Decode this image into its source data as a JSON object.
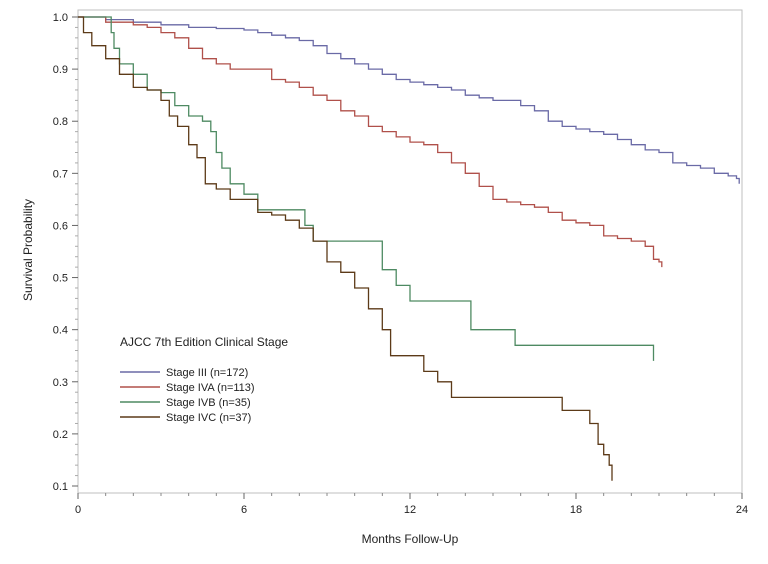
{
  "chart_data": {
    "type": "line",
    "subtype": "kaplan-meier step curves",
    "title": "",
    "xlabel": "Months Follow-Up",
    "ylabel": "Survival Probability",
    "xlim": [
      0,
      24
    ],
    "ylim": [
      0.1,
      1.0
    ],
    "x_ticks": [
      0,
      6,
      12,
      18,
      24
    ],
    "x_tick_labels": [
      "0",
      "6",
      "12",
      "18",
      "24"
    ],
    "y_ticks": [
      0.1,
      0.2,
      0.3,
      0.4,
      0.5,
      0.6,
      0.7,
      0.8,
      0.9,
      1.0
    ],
    "y_tick_labels": [
      "0.1",
      "0.2",
      "0.3",
      "0.4",
      "0.5",
      "0.6",
      "0.7",
      "0.8",
      "0.9",
      "1.0"
    ],
    "grid": false,
    "legend": {
      "title": "AJCC 7th Edition Clinical Stage",
      "placement": "lower-left inside plot"
    },
    "series": [
      {
        "name": "Stage III (n=172)",
        "color": "#6a6aa6",
        "points": [
          [
            0,
            1.0
          ],
          [
            1.0,
            0.995
          ],
          [
            2.0,
            0.99
          ],
          [
            3.0,
            0.985
          ],
          [
            4.0,
            0.98
          ],
          [
            5.0,
            0.978
          ],
          [
            6.0,
            0.975
          ],
          [
            6.5,
            0.97
          ],
          [
            7.0,
            0.965
          ],
          [
            7.5,
            0.96
          ],
          [
            8.0,
            0.955
          ],
          [
            8.5,
            0.945
          ],
          [
            9.0,
            0.93
          ],
          [
            9.5,
            0.92
          ],
          [
            10.0,
            0.91
          ],
          [
            10.5,
            0.9
          ],
          [
            11.0,
            0.89
          ],
          [
            11.5,
            0.88
          ],
          [
            12.0,
            0.875
          ],
          [
            12.5,
            0.87
          ],
          [
            13.0,
            0.865
          ],
          [
            13.5,
            0.86
          ],
          [
            14.0,
            0.85
          ],
          [
            14.5,
            0.845
          ],
          [
            15.0,
            0.84
          ],
          [
            15.5,
            0.84
          ],
          [
            16.0,
            0.83
          ],
          [
            16.5,
            0.82
          ],
          [
            17.0,
            0.8
          ],
          [
            17.5,
            0.79
          ],
          [
            18.0,
            0.785
          ],
          [
            18.5,
            0.78
          ],
          [
            19.0,
            0.775
          ],
          [
            19.5,
            0.765
          ],
          [
            20.0,
            0.755
          ],
          [
            20.5,
            0.745
          ],
          [
            21.0,
            0.74
          ],
          [
            21.5,
            0.72
          ],
          [
            22.0,
            0.715
          ],
          [
            22.5,
            0.71
          ],
          [
            23.0,
            0.7
          ],
          [
            23.5,
            0.695
          ],
          [
            23.8,
            0.69
          ],
          [
            23.9,
            0.68
          ]
        ]
      },
      {
        "name": "Stage IVA (n=113)",
        "color": "#b0504a",
        "points": [
          [
            0,
            1.0
          ],
          [
            1.0,
            0.99
          ],
          [
            2.0,
            0.985
          ],
          [
            2.5,
            0.98
          ],
          [
            3.0,
            0.97
          ],
          [
            3.5,
            0.96
          ],
          [
            4.0,
            0.94
          ],
          [
            4.5,
            0.92
          ],
          [
            5.0,
            0.91
          ],
          [
            5.5,
            0.9
          ],
          [
            6.0,
            0.9
          ],
          [
            6.5,
            0.9
          ],
          [
            7.0,
            0.88
          ],
          [
            7.5,
            0.875
          ],
          [
            8.0,
            0.865
          ],
          [
            8.5,
            0.85
          ],
          [
            9.0,
            0.84
          ],
          [
            9.5,
            0.82
          ],
          [
            10.0,
            0.81
          ],
          [
            10.5,
            0.79
          ],
          [
            11.0,
            0.78
          ],
          [
            11.5,
            0.77
          ],
          [
            12.0,
            0.76
          ],
          [
            12.5,
            0.755
          ],
          [
            13.0,
            0.74
          ],
          [
            13.5,
            0.72
          ],
          [
            14.0,
            0.7
          ],
          [
            14.5,
            0.675
          ],
          [
            15.0,
            0.65
          ],
          [
            15.5,
            0.645
          ],
          [
            16.0,
            0.64
          ],
          [
            16.5,
            0.635
          ],
          [
            17.0,
            0.625
          ],
          [
            17.5,
            0.61
          ],
          [
            18.0,
            0.605
          ],
          [
            18.5,
            0.6
          ],
          [
            19.0,
            0.58
          ],
          [
            19.5,
            0.575
          ],
          [
            20.0,
            0.57
          ],
          [
            20.5,
            0.56
          ],
          [
            20.8,
            0.535
          ],
          [
            21.0,
            0.53
          ],
          [
            21.1,
            0.52
          ]
        ]
      },
      {
        "name": "Stage IVB (n=35)",
        "color": "#4e8a62",
        "points": [
          [
            0,
            1.0
          ],
          [
            1.2,
            0.97
          ],
          [
            1.3,
            0.94
          ],
          [
            1.5,
            0.91
          ],
          [
            2.0,
            0.89
          ],
          [
            2.5,
            0.86
          ],
          [
            3.0,
            0.855
          ],
          [
            3.5,
            0.83
          ],
          [
            4.0,
            0.81
          ],
          [
            4.5,
            0.8
          ],
          [
            4.8,
            0.78
          ],
          [
            5.0,
            0.74
          ],
          [
            5.2,
            0.71
          ],
          [
            5.5,
            0.68
          ],
          [
            6.0,
            0.66
          ],
          [
            6.5,
            0.63
          ],
          [
            7.0,
            0.63
          ],
          [
            8.0,
            0.63
          ],
          [
            8.2,
            0.6
          ],
          [
            8.5,
            0.57
          ],
          [
            9.0,
            0.57
          ],
          [
            10.0,
            0.57
          ],
          [
            10.5,
            0.57
          ],
          [
            11.0,
            0.515
          ],
          [
            11.5,
            0.485
          ],
          [
            12.0,
            0.455
          ],
          [
            13.0,
            0.455
          ],
          [
            14.0,
            0.455
          ],
          [
            14.2,
            0.4
          ],
          [
            15.0,
            0.4
          ],
          [
            15.8,
            0.37
          ],
          [
            17.0,
            0.37
          ],
          [
            18.0,
            0.37
          ],
          [
            19.0,
            0.37
          ],
          [
            20.0,
            0.37
          ],
          [
            20.7,
            0.37
          ],
          [
            20.8,
            0.34
          ]
        ]
      },
      {
        "name": "Stage IVC (n=37)",
        "color": "#5c3a18",
        "points": [
          [
            0,
            1.0
          ],
          [
            0.2,
            0.97
          ],
          [
            0.5,
            0.945
          ],
          [
            1.0,
            0.92
          ],
          [
            1.5,
            0.89
          ],
          [
            2.0,
            0.865
          ],
          [
            2.5,
            0.86
          ],
          [
            3.0,
            0.84
          ],
          [
            3.3,
            0.81
          ],
          [
            3.6,
            0.79
          ],
          [
            4.0,
            0.755
          ],
          [
            4.3,
            0.73
          ],
          [
            4.6,
            0.68
          ],
          [
            5.0,
            0.67
          ],
          [
            5.5,
            0.65
          ],
          [
            6.0,
            0.65
          ],
          [
            6.5,
            0.625
          ],
          [
            7.0,
            0.62
          ],
          [
            7.5,
            0.61
          ],
          [
            8.0,
            0.595
          ],
          [
            8.5,
            0.57
          ],
          [
            9.0,
            0.53
          ],
          [
            9.5,
            0.51
          ],
          [
            10.0,
            0.48
          ],
          [
            10.5,
            0.44
          ],
          [
            11.0,
            0.4
          ],
          [
            11.3,
            0.35
          ],
          [
            12.0,
            0.35
          ],
          [
            12.5,
            0.32
          ],
          [
            13.0,
            0.3
          ],
          [
            13.5,
            0.27
          ],
          [
            14.0,
            0.27
          ],
          [
            15.0,
            0.27
          ],
          [
            16.0,
            0.27
          ],
          [
            17.0,
            0.27
          ],
          [
            17.5,
            0.245
          ],
          [
            18.0,
            0.245
          ],
          [
            18.5,
            0.22
          ],
          [
            18.8,
            0.18
          ],
          [
            19.0,
            0.16
          ],
          [
            19.2,
            0.14
          ],
          [
            19.3,
            0.11
          ]
        ]
      }
    ]
  }
}
